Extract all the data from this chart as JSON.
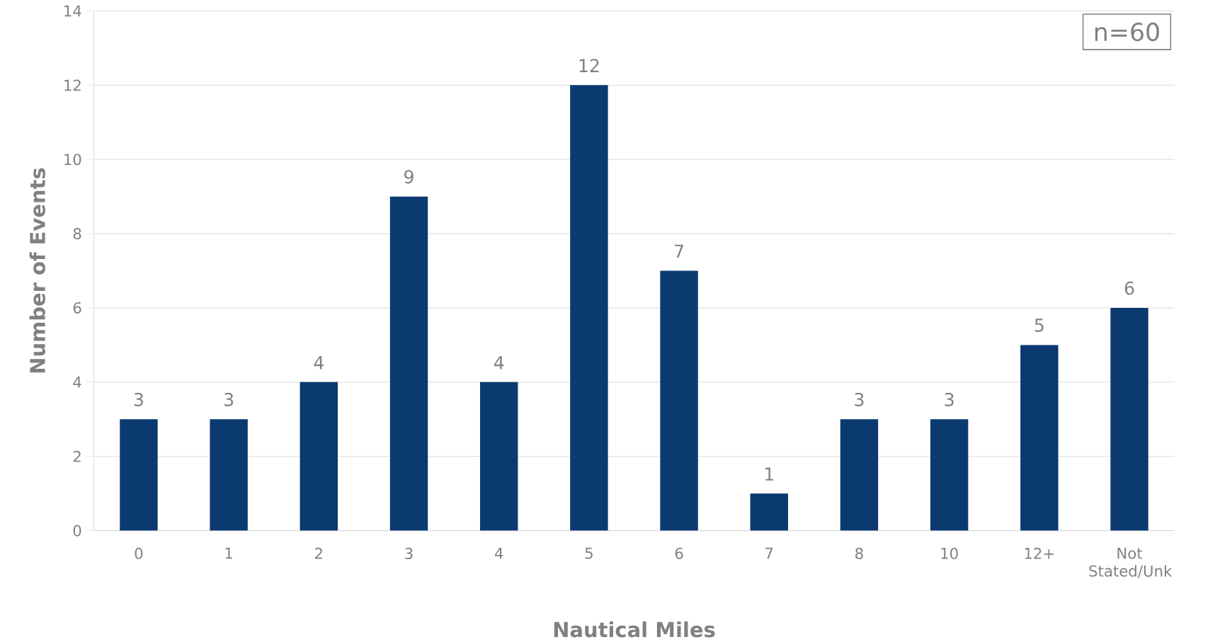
{
  "chart_data": {
    "type": "bar",
    "xlabel": "Nautical Miles",
    "ylabel": "Number of Events",
    "categories": [
      "0",
      "1",
      "2",
      "3",
      "4",
      "5",
      "6",
      "7",
      "8",
      "10",
      "12+",
      "Not Stated/Unk"
    ],
    "values": [
      3,
      3,
      4,
      9,
      4,
      12,
      7,
      1,
      3,
      3,
      5,
      6
    ],
    "color": "#0a3a70",
    "ylim": [
      0,
      14
    ],
    "yticks": [
      0,
      2,
      4,
      6,
      8,
      10,
      12,
      14
    ],
    "grid": "y",
    "data_labels": true,
    "annotations": [
      "n=60"
    ]
  }
}
